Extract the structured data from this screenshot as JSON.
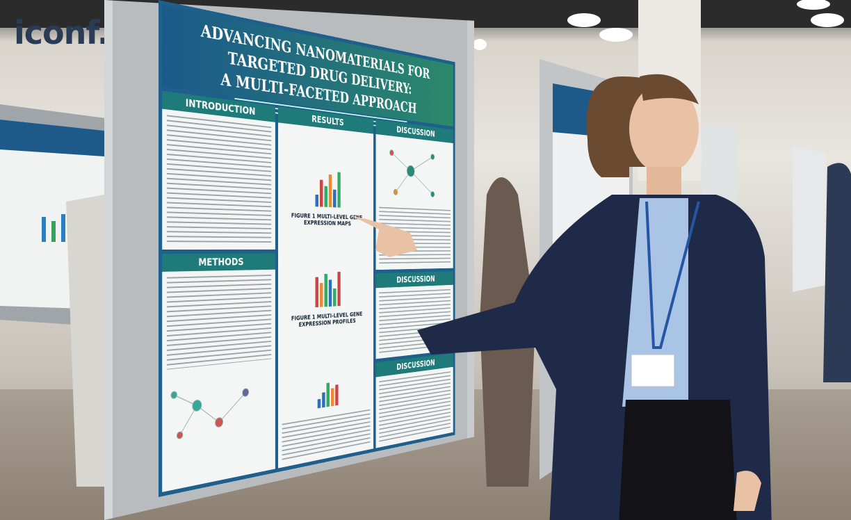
{
  "logo": "iconf.com",
  "poster": {
    "title": [
      "ADVANCING NANOMATERIALS FOR TARGETED DRUG DELIVERY:",
      "A MULTI-FACETED APPROACH"
    ],
    "sections": {
      "introduction": "INTRODUCTION",
      "methods": "METHODS",
      "results": "RESULTS",
      "discussion": [
        "DISCUSSION",
        "DISCUSSION",
        "DISCUSSION"
      ]
    },
    "figures": [
      "FIGURE 1 MULTI-LEVEL GENE EXPRESSION MAPS",
      "FIGURE 1 MULTI-LEVEL GENE EXPRESSION PROFILES"
    ]
  }
}
